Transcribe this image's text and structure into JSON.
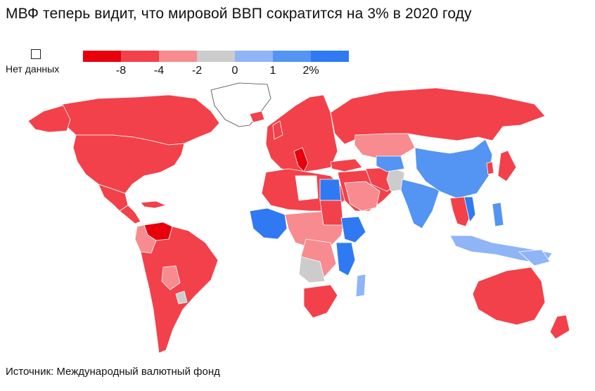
{
  "title": "МВФ теперь видит, что мировой ВВП сократится на 3% в 2020 году",
  "legend": {
    "no_data_label": "Нет данных",
    "colors": [
      "#e8000b",
      "#f2414a",
      "#f78b8f",
      "#cccccc",
      "#8fb5f7",
      "#5494f2",
      "#2f7af2"
    ],
    "ticks": [
      "-8",
      "-4",
      "-2",
      "0",
      "1",
      "2%"
    ]
  },
  "source": "Источник: Международный валютный фонд"
}
